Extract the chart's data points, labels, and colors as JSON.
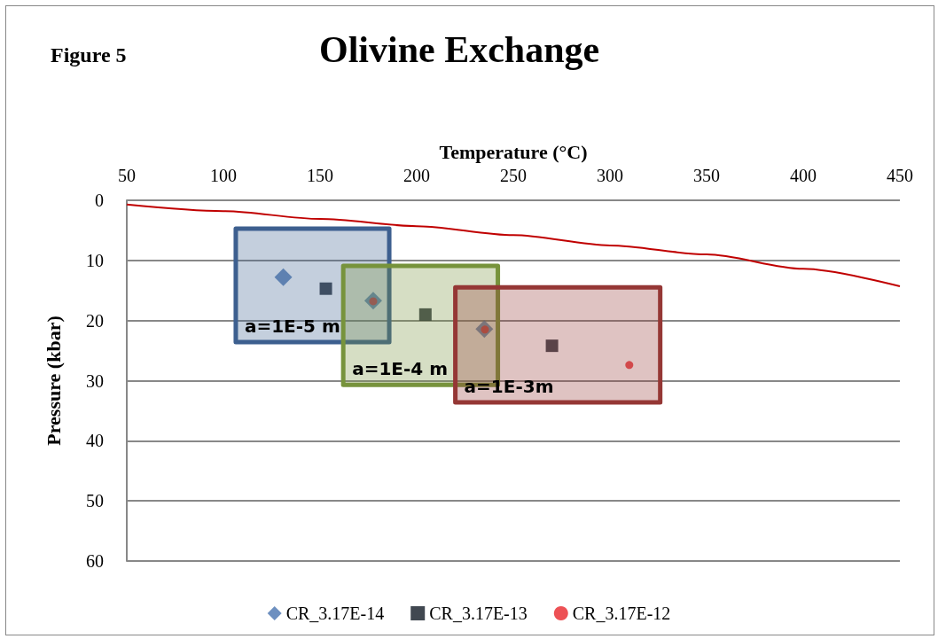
{
  "chart_data": {
    "type": "scatter",
    "title": "Olivine Exchange",
    "subtitle": "Figure 5",
    "xlabel": "Temperature (°C)",
    "ylabel": "Pressure (kbar)",
    "xlim": [
      50,
      450
    ],
    "xticks": [
      50,
      100,
      150,
      200,
      250,
      300,
      350,
      400,
      450
    ],
    "ylim": [
      60,
      0
    ],
    "yticks": [
      0,
      10,
      20,
      30,
      40,
      50,
      60
    ],
    "grid": "y",
    "legend": "bottom",
    "series": [
      {
        "name": "CR_3.17E-14",
        "marker": "diamond",
        "color": "#4a74b0",
        "x": [
          131,
          177.5,
          235
        ],
        "values": [
          12.8,
          16.7,
          21.4
        ]
      },
      {
        "name": "CR_3.17E-13",
        "marker": "square",
        "color": "#111a26",
        "x": [
          153,
          204.5,
          270
        ],
        "values": [
          14.7,
          19,
          24.2
        ]
      },
      {
        "name": "CR_3.17E-12",
        "marker": "circle",
        "color": "#e8262a",
        "x": [
          177.5,
          235.3,
          310
        ],
        "values": [
          16.8,
          21.5,
          27.4
        ]
      },
      {
        "type": "line",
        "marker": "none",
        "color": "#c00000",
        "x": [
          50,
          100,
          150,
          200,
          250,
          300,
          350,
          400,
          450
        ],
        "values": [
          0.7,
          1.8,
          3.1,
          4.3,
          5.8,
          7.5,
          9.0,
          11.4,
          14.3
        ]
      },
      {
        "name": "a=1E-5 m",
        "type": "area",
        "color": "#3d5f8f",
        "x": [
          106.4,
          185.8,
          185.8,
          106.4,
          106.4
        ],
        "values": [
          4.7,
          4.7,
          23.6,
          23.6,
          4.7
        ]
      },
      {
        "name": "a=1E-4 m",
        "type": "area",
        "color": "#77933c",
        "x": [
          162,
          242,
          242,
          162,
          162
        ],
        "values": [
          10.9,
          10.9,
          30.7,
          30.7,
          10.9
        ]
      },
      {
        "name": "a=1E-3m",
        "type": "area",
        "color": "#953735",
        "x": [
          220,
          326,
          326,
          220,
          220
        ],
        "values": [
          14.5,
          14.5,
          33.6,
          33.6,
          14.5
        ]
      }
    ]
  }
}
